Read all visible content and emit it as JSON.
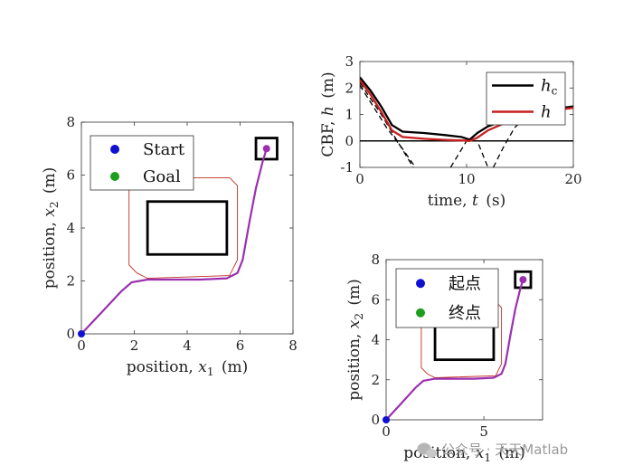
{
  "watermark": {
    "text": "公众号 · 天天Matlab",
    "icon": "wechat-icon"
  },
  "colors": {
    "start": "#1010d0",
    "goal": "#1e9e1e",
    "path": "#9b2fb0",
    "safe_set": "#c03020",
    "obstacle": "#000000",
    "h_c": "#000000",
    "h": "#c81e1e"
  },
  "chart_data": [
    {
      "id": "trajectory-main",
      "type": "line",
      "xlabel_prefix": "position, ",
      "xlabel_var": "x",
      "xlabel_sub": "1",
      "xlabel_unit": "(m)",
      "ylabel_prefix": "position, ",
      "ylabel_var": "x",
      "ylabel_sub": "2",
      "ylabel_unit": "(m)",
      "xlim": [
        0,
        8
      ],
      "ylim": [
        0,
        8
      ],
      "xticks": [
        0,
        2,
        4,
        6,
        8
      ],
      "yticks": [
        0,
        2,
        4,
        6,
        8
      ],
      "xtick_labels": [
        "0",
        "2",
        "4",
        "6",
        "8"
      ],
      "ytick_labels": [
        "0",
        "2",
        "4",
        "6",
        "8"
      ],
      "legend": [
        "Start",
        "Goal"
      ],
      "legend_position": "top-left",
      "start": [
        0,
        0
      ],
      "goal": [
        7,
        7
      ],
      "obstacle_rect": {
        "x": [
          2.5,
          5.5
        ],
        "y": [
          3,
          5
        ]
      },
      "goal_box": {
        "x": [
          6.6,
          7.4
        ],
        "y": [
          6.6,
          7.4
        ]
      },
      "safe_boundary": [
        [
          2.0,
          5.9
        ],
        [
          5.6,
          5.9
        ],
        [
          5.9,
          5.6
        ],
        [
          5.9,
          2.8
        ],
        [
          5.6,
          2.2
        ],
        [
          2.5,
          2.1
        ],
        [
          2.1,
          2.3
        ],
        [
          1.8,
          2.6
        ],
        [
          1.8,
          5.5
        ],
        [
          2.0,
          5.9
        ]
      ],
      "path": [
        [
          0,
          0
        ],
        [
          0.8,
          0.85
        ],
        [
          1.5,
          1.6
        ],
        [
          1.9,
          1.95
        ],
        [
          2.5,
          2.05
        ],
        [
          4.5,
          2.05
        ],
        [
          5.5,
          2.1
        ],
        [
          5.9,
          2.3
        ],
        [
          6.1,
          2.8
        ],
        [
          6.35,
          4.2
        ],
        [
          6.6,
          5.5
        ],
        [
          6.85,
          6.5
        ],
        [
          7.0,
          7.0
        ]
      ]
    },
    {
      "id": "cbf-time",
      "type": "line",
      "xlabel_prefix": "time, ",
      "xlabel_var": "t",
      "xlabel_unit": "(s)",
      "ylabel_prefix": "CBF, ",
      "ylabel_var": "h",
      "ylabel_unit": "(m)",
      "xlim": [
        0,
        20
      ],
      "ylim": [
        -1,
        3
      ],
      "xticks": [
        0,
        10,
        20
      ],
      "yticks": [
        -1,
        0,
        1,
        2,
        3
      ],
      "xtick_labels": [
        "0",
        "10",
        "20"
      ],
      "ytick_labels": [
        "-1",
        "0",
        "1",
        "2",
        "3"
      ],
      "legend": [
        "h",
        "h"
      ],
      "legend_subs": [
        "c",
        ""
      ],
      "legend_position": "top-right",
      "series": [
        {
          "x": [
            0,
            1,
            2,
            3,
            4,
            6,
            8,
            9.5,
            10.3,
            11,
            12,
            14,
            16,
            18,
            20
          ],
          "y": [
            2.4,
            1.9,
            1.3,
            0.6,
            0.35,
            0.3,
            0.22,
            0.15,
            0.05,
            0.3,
            0.55,
            0.85,
            1.05,
            1.2,
            1.3
          ]
        },
        {
          "x": [
            0,
            1,
            2,
            3,
            4,
            6,
            8,
            9.5,
            10.3,
            11,
            12,
            14,
            16,
            18,
            20
          ],
          "y": [
            2.3,
            1.75,
            1.1,
            0.4,
            0.15,
            0.08,
            0.04,
            0.02,
            0.0,
            0.12,
            0.4,
            0.75,
            1.0,
            1.15,
            1.25
          ]
        }
      ],
      "dashed": [
        {
          "x": [
            0,
            2,
            3.5,
            5
          ],
          "y": [
            2.2,
            1.0,
            0.0,
            -1.0
          ]
        },
        {
          "x": [
            0,
            2.5,
            4,
            5.2
          ],
          "y": [
            2.1,
            0.5,
            -0.3,
            -1.0
          ]
        },
        {
          "x": [
            8.5,
            10,
            11,
            12
          ],
          "y": [
            -1.0,
            0.0,
            0.0,
            -1.0
          ]
        },
        {
          "x": [
            12.5,
            13.5,
            14.5,
            15.5
          ],
          "y": [
            -1.0,
            -0.2,
            0.5,
            0.9
          ]
        }
      ],
      "zero_line": 0
    },
    {
      "id": "trajectory-inset",
      "type": "line",
      "xlabel_prefix": "position, ",
      "xlabel_var": "x",
      "xlabel_sub": "1",
      "xlabel_unit": "(m)",
      "ylabel_prefix": "position, ",
      "ylabel_var": "x",
      "ylabel_sub": "2",
      "ylabel_unit": "(m)",
      "xlim": [
        0,
        8
      ],
      "ylim": [
        0,
        8
      ],
      "xticks": [
        0,
        5
      ],
      "yticks": [
        0,
        2,
        4,
        6,
        8
      ],
      "xtick_labels": [
        "0",
        "5"
      ],
      "ytick_labels": [
        "0",
        "2",
        "4",
        "6",
        "8"
      ],
      "legend": [
        "起点",
        "终点"
      ],
      "legend_position": "top-left",
      "start": [
        0,
        0
      ],
      "goal": [
        7,
        7
      ],
      "obstacle_rect": {
        "x": [
          2.5,
          5.5
        ],
        "y": [
          3,
          5
        ]
      },
      "goal_box": {
        "x": [
          6.6,
          7.4
        ],
        "y": [
          6.6,
          7.4
        ]
      },
      "safe_boundary": [
        [
          2.0,
          5.9
        ],
        [
          5.6,
          5.9
        ],
        [
          5.9,
          5.6
        ],
        [
          5.9,
          2.8
        ],
        [
          5.6,
          2.2
        ],
        [
          2.5,
          2.1
        ],
        [
          2.1,
          2.3
        ],
        [
          1.8,
          2.6
        ],
        [
          1.8,
          5.5
        ],
        [
          2.0,
          5.9
        ]
      ],
      "path": [
        [
          0,
          0
        ],
        [
          0.8,
          0.85
        ],
        [
          1.5,
          1.6
        ],
        [
          1.9,
          1.95
        ],
        [
          2.5,
          2.05
        ],
        [
          4.5,
          2.05
        ],
        [
          5.5,
          2.1
        ],
        [
          5.9,
          2.3
        ],
        [
          6.1,
          2.8
        ],
        [
          6.35,
          4.2
        ],
        [
          6.6,
          5.5
        ],
        [
          6.85,
          6.5
        ],
        [
          7.0,
          7.0
        ]
      ]
    }
  ]
}
